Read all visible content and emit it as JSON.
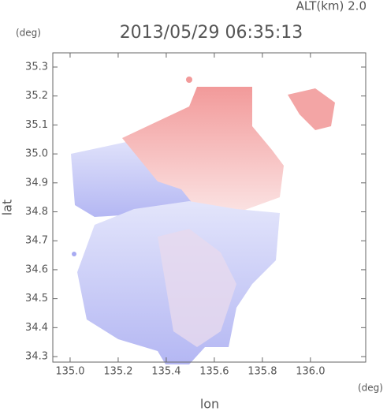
{
  "chart_data": {
    "type": "map",
    "title": "2013/05/29 06:35:13",
    "subtitle": "ALT(km) 2.0",
    "y_unit": "(deg)",
    "x_unit": "(deg)",
    "x_label": "lon",
    "y_label": "lat",
    "xlim": [
      134.928,
      136.23
    ],
    "ylim": [
      34.281,
      35.349
    ],
    "xticks": [
      {
        "value": 135,
        "label": "135.0"
      },
      135.2,
      135.4,
      135.6,
      135.8,
      {
        "value": 136,
        "label": "136.0"
      }
    ],
    "yticks": [
      34.3,
      34.4,
      34.5,
      34.6,
      34.7,
      34.8,
      34.9,
      {
        "value": 35,
        "label": "35.0"
      },
      35.1,
      35.2,
      35.3
    ]
  }
}
